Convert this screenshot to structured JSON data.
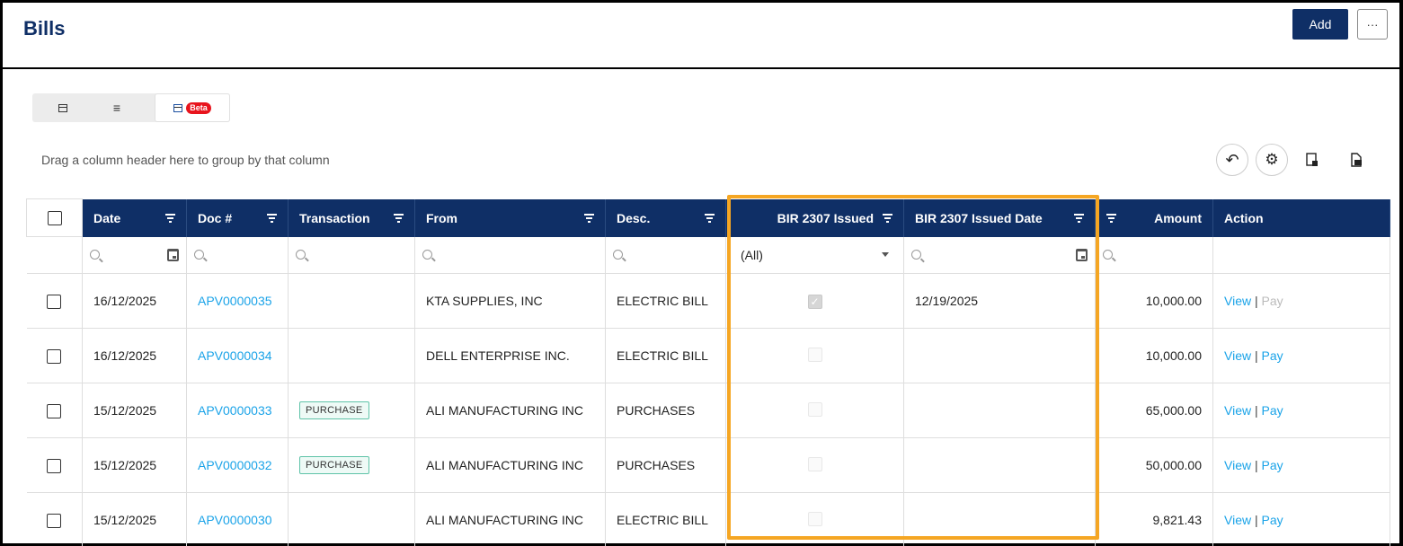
{
  "header": {
    "title": "Bills",
    "add_label": "Add",
    "more_label": "···"
  },
  "view_switch": {
    "beta_label": "Beta"
  },
  "toolbar": {
    "group_hint": "Drag a column header here to group by that column",
    "icons": [
      "undo-icon",
      "gear-icon",
      "export-icon",
      "export-pdf-icon"
    ]
  },
  "grid": {
    "columns": [
      "Date",
      "Doc #",
      "Transaction",
      "From",
      "Desc.",
      "BIR 2307 Issued",
      "BIR 2307 Issued Date",
      "Amount",
      "Action"
    ],
    "filters": {
      "bir_issued_value": "(All)"
    },
    "rows": [
      {
        "date": "16/12/2025",
        "doc": "APV0000035",
        "transaction": "",
        "from": "KTA SUPPLIES, INC",
        "desc": "ELECTRIC BILL",
        "bir_issued": true,
        "bir_date": "12/19/2025",
        "amount": "10,000.00",
        "view": "View",
        "sep": "|",
        "pay": "Pay",
        "pay_enabled": false
      },
      {
        "date": "16/12/2025",
        "doc": "APV0000034",
        "transaction": "",
        "from": "DELL ENTERPRISE INC.",
        "desc": "ELECTRIC BILL",
        "bir_issued": false,
        "bir_date": "",
        "amount": "10,000.00",
        "view": "View",
        "sep": "|",
        "pay": "Pay",
        "pay_enabled": true
      },
      {
        "date": "15/12/2025",
        "doc": "APV0000033",
        "transaction": "PURCHASE",
        "from": "ALI MANUFACTURING INC",
        "desc": "PURCHASES",
        "bir_issued": false,
        "bir_date": "",
        "amount": "65,000.00",
        "view": "View",
        "sep": "|",
        "pay": "Pay",
        "pay_enabled": true
      },
      {
        "date": "15/12/2025",
        "doc": "APV0000032",
        "transaction": "PURCHASE",
        "from": "ALI MANUFACTURING INC",
        "desc": "PURCHASES",
        "bir_issued": false,
        "bir_date": "",
        "amount": "50,000.00",
        "view": "View",
        "sep": "|",
        "pay": "Pay",
        "pay_enabled": true
      },
      {
        "date": "15/12/2025",
        "doc": "APV0000030",
        "transaction": "",
        "from": "ALI MANUFACTURING INC",
        "desc": "ELECTRIC BILL",
        "bir_issued": false,
        "bir_date": "",
        "amount": "9,821.43",
        "view": "View",
        "sep": "|",
        "pay": "Pay",
        "pay_enabled": true
      }
    ]
  },
  "colors": {
    "primary": "#0f2f66",
    "link": "#1aa3e8",
    "highlight": "#f5a623",
    "beta": "#e8141d"
  }
}
